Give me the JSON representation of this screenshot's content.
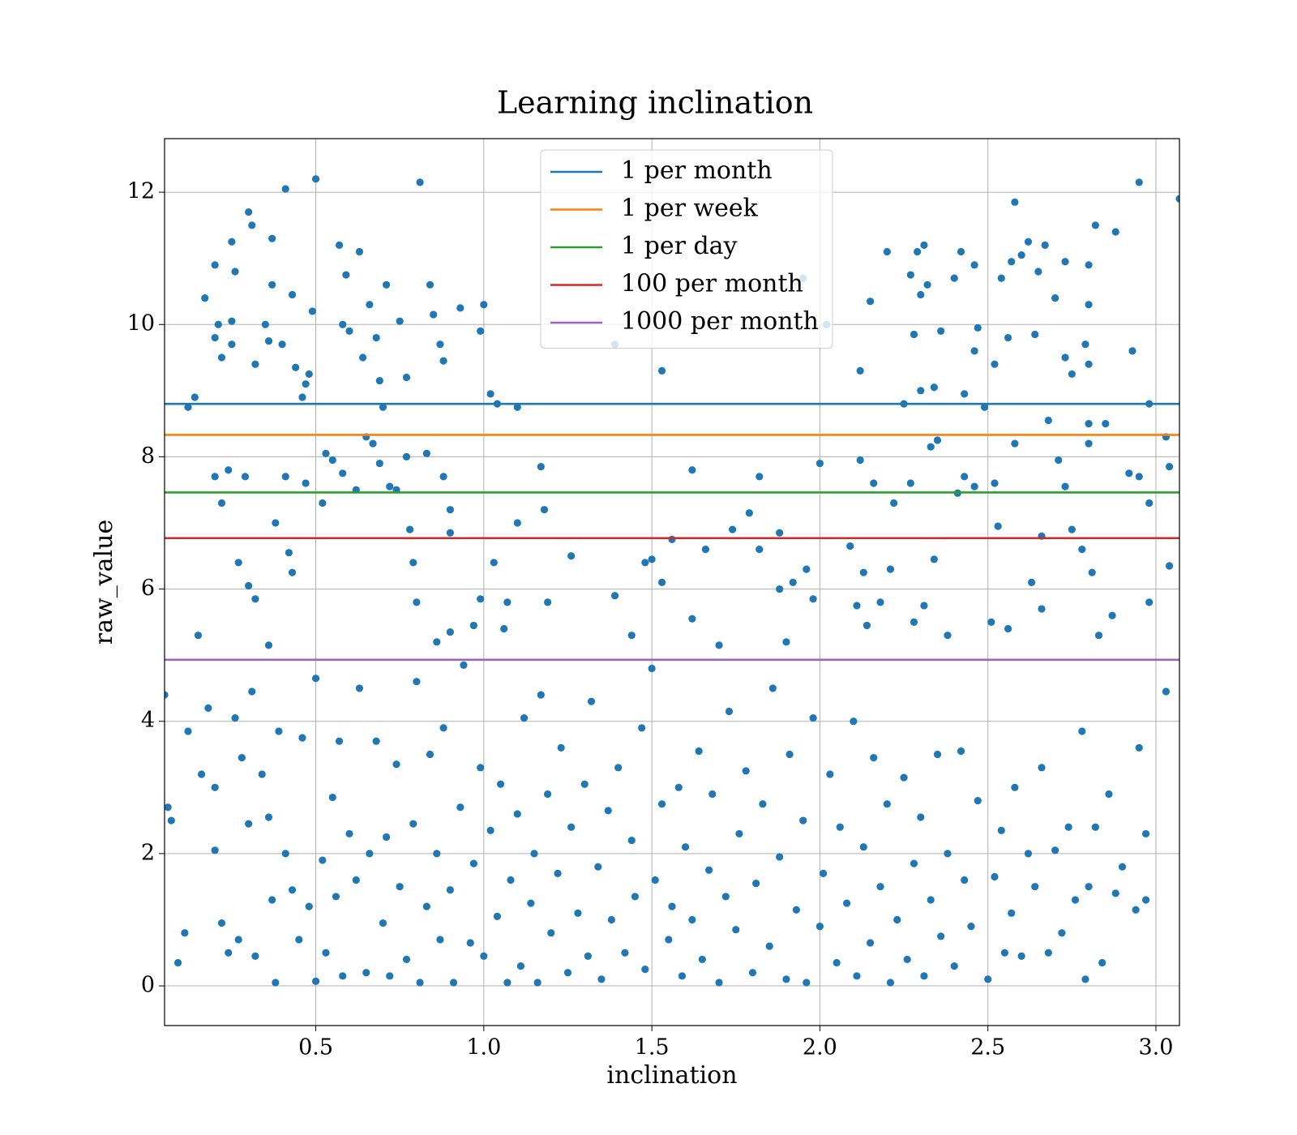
{
  "chart_data": {
    "type": "scatter",
    "title": "Learning inclination",
    "x_label": "inclination",
    "y_label": "raw_value",
    "color": "#1f77b4",
    "grid": true,
    "legend": "upper center",
    "xlim": [
      0.05,
      3.07
    ],
    "ylim": [
      -0.6,
      12.81
    ],
    "xticks": [
      0.5,
      {
        "value": 1,
        "label": "1.0"
      },
      1.5,
      {
        "value": 2,
        "label": "2.0"
      },
      2.5,
      {
        "value": 3,
        "label": "3.0"
      }
    ],
    "yticks": [
      0,
      2,
      4,
      6,
      8,
      10,
      12
    ],
    "hlines": [
      {
        "name": "1 per month",
        "color": "#1f77b4",
        "value": 8.8
      },
      {
        "name": "1 per week",
        "color": "#ff7f0e",
        "value": 8.33
      },
      {
        "name": "1 per day",
        "color": "#2ca02c",
        "value": 7.46
      },
      {
        "name": "100 per month",
        "color": "#d62728",
        "value": 6.77
      },
      {
        "name": "1000 per month",
        "color": "#9467bd",
        "value": 4.93
      }
    ],
    "x": [
      0.12,
      0.14,
      0.17,
      0.2,
      0.2,
      0.21,
      0.22,
      0.25,
      0.25,
      0.25,
      0.26,
      0.3,
      0.31,
      0.32,
      0.35,
      0.37,
      0.37,
      0.36,
      0.41,
      0.4,
      0.43,
      0.44,
      0.46,
      0.47,
      0.48,
      0.49,
      0.5,
      0.57,
      0.58,
      0.59,
      0.6,
      0.63,
      0.64,
      0.66,
      0.68,
      0.69,
      0.7,
      0.71,
      0.75,
      0.77,
      0.81,
      0.84,
      0.85,
      0.87,
      0.88,
      0.93,
      0.99,
      1.0,
      1.02,
      1.04,
      1.1,
      1.39,
      1.53,
      1.95,
      2.02,
      2.12,
      2.15,
      2.2,
      2.27,
      2.29,
      2.31,
      2.32,
      2.3,
      2.28,
      2.3,
      2.34,
      2.36,
      2.4,
      2.42,
      2.43,
      2.46,
      2.46,
      2.47,
      2.52,
      2.54,
      2.56,
      2.58,
      2.57,
      2.6,
      2.62,
      2.64,
      2.65,
      2.67,
      2.7,
      2.73,
      2.73,
      2.75,
      2.8,
      2.8,
      2.8,
      2.79,
      2.82,
      2.88,
      2.93,
      2.95,
      3.07,
      2.98,
      3.03,
      0.2,
      0.22,
      0.24,
      0.27,
      0.29,
      0.3,
      0.32,
      0.36,
      0.38,
      0.41,
      0.42,
      0.43,
      0.47,
      0.52,
      0.53,
      0.55,
      0.58,
      0.62,
      0.65,
      0.67,
      0.69,
      0.72,
      0.74,
      0.77,
      0.78,
      0.79,
      0.8,
      0.83,
      0.86,
      0.88,
      0.9,
      0.9,
      0.9,
      0.97,
      0.99,
      1.03,
      1.06,
      1.07,
      1.1,
      1.17,
      1.18,
      1.19,
      1.26,
      1.39,
      1.44,
      1.48,
      1.5,
      1.53,
      1.56,
      1.62,
      1.62,
      1.66,
      1.7,
      1.74,
      1.79,
      1.82,
      1.82,
      1.88,
      1.88,
      1.9,
      1.92,
      1.96,
      1.98,
      2.0,
      2.09,
      2.11,
      2.12,
      2.13,
      2.14,
      2.16,
      2.18,
      2.21,
      2.22,
      2.25,
      2.27,
      2.28,
      2.31,
      2.33,
      2.35,
      2.34,
      2.38,
      2.41,
      2.43,
      2.46,
      2.49,
      2.51,
      2.52,
      2.53,
      2.56,
      2.58,
      2.63,
      2.66,
      2.66,
      2.68,
      2.71,
      2.73,
      2.75,
      2.78,
      2.8,
      2.8,
      2.81,
      2.83,
      2.85,
      2.87,
      2.92,
      2.95,
      2.98,
      2.98,
      3.04,
      3.04,
      0.05,
      0.06,
      0.07,
      0.09,
      0.11,
      0.12,
      0.15,
      0.16,
      0.18,
      0.2,
      0.2,
      0.22,
      0.24,
      0.26,
      0.27,
      0.28,
      0.3,
      0.31,
      0.32,
      0.34,
      0.36,
      0.37,
      0.38,
      0.39,
      0.41,
      0.43,
      0.45,
      0.46,
      0.48,
      0.5,
      0.5,
      0.52,
      0.53,
      0.55,
      0.56,
      0.57,
      0.58,
      0.6,
      0.62,
      0.63,
      0.65,
      0.66,
      0.68,
      0.7,
      0.71,
      0.72,
      0.74,
      0.75,
      0.77,
      0.79,
      0.8,
      0.81,
      0.83,
      0.84,
      0.86,
      0.87,
      0.88,
      0.9,
      0.91,
      0.93,
      0.94,
      0.96,
      0.97,
      0.99,
      1.0,
      1.02,
      1.04,
      1.05,
      1.07,
      1.08,
      1.1,
      1.11,
      1.12,
      1.14,
      1.15,
      1.16,
      1.17,
      1.19,
      1.2,
      1.22,
      1.23,
      1.25,
      1.26,
      1.28,
      1.3,
      1.31,
      1.32,
      1.34,
      1.35,
      1.37,
      1.38,
      1.4,
      1.42,
      1.44,
      1.45,
      1.47,
      1.48,
      1.5,
      1.51,
      1.53,
      1.55,
      1.56,
      1.58,
      1.59,
      1.6,
      1.62,
      1.64,
      1.65,
      1.67,
      1.68,
      1.7,
      1.72,
      1.73,
      1.75,
      1.76,
      1.78,
      1.8,
      1.81,
      1.83,
      1.85,
      1.86,
      1.88,
      1.9,
      1.91,
      1.93,
      1.95,
      1.96,
      1.98,
      2.0,
      2.01,
      2.03,
      2.05,
      2.06,
      2.08,
      2.1,
      2.11,
      2.13,
      2.15,
      2.16,
      2.18,
      2.2,
      2.21,
      2.23,
      2.25,
      2.26,
      2.28,
      2.3,
      2.31,
      2.33,
      2.35,
      2.36,
      2.38,
      2.4,
      2.42,
      2.43,
      2.45,
      2.47,
      2.5,
      2.52,
      2.54,
      2.55,
      2.57,
      2.58,
      2.6,
      2.62,
      2.64,
      2.66,
      2.68,
      2.7,
      2.72,
      2.74,
      2.76,
      2.78,
      2.79,
      2.8,
      2.82,
      2.84,
      2.86,
      2.88,
      2.9,
      2.94,
      2.95,
      2.97,
      2.97,
      3.03
    ],
    "values": [
      8.75,
      8.9,
      10.4,
      9.8,
      10.9,
      10,
      9.5,
      11.25,
      9.7,
      10.05,
      10.8,
      11.7,
      11.5,
      9.4,
      10,
      11.3,
      10.6,
      9.75,
      12.05,
      9.7,
      10.45,
      9.35,
      8.9,
      9.1,
      9.25,
      10.2,
      12.2,
      11.2,
      10,
      10.75,
      9.9,
      11.1,
      9.5,
      10.3,
      9.8,
      9.15,
      8.75,
      10.6,
      10.05,
      9.2,
      12.15,
      10.6,
      10.15,
      9.7,
      9.45,
      10.25,
      9.9,
      10.3,
      8.95,
      8.8,
      8.75,
      9.7,
      9.3,
      10.7,
      10,
      9.3,
      10.35,
      11.1,
      10.75,
      11.1,
      11.2,
      10.6,
      10.45,
      9.85,
      9,
      9.05,
      9.9,
      10.7,
      11.1,
      8.95,
      10.9,
      9.6,
      9.95,
      9.4,
      10.7,
      9.8,
      11.85,
      10.95,
      11.05,
      11.25,
      9.85,
      10.8,
      11.2,
      10.4,
      10.95,
      9.5,
      9.25,
      10.9,
      10.3,
      9.4,
      9.7,
      11.5,
      11.4,
      9.6,
      12.15,
      11.9,
      8.8,
      8.3,
      7.7,
      7.3,
      7.8,
      6.4,
      7.7,
      6.05,
      5.85,
      5.15,
      7,
      7.7,
      6.55,
      6.25,
      7.6,
      7.3,
      8.05,
      7.95,
      7.75,
      7.5,
      8.3,
      8.2,
      7.9,
      7.55,
      7.5,
      8,
      6.9,
      6.4,
      5.8,
      8.05,
      5.2,
      7.7,
      6.85,
      7.2,
      5.35,
      5.45,
      5.85,
      6.4,
      5.4,
      5.8,
      7,
      7.85,
      7.2,
      5.8,
      6.5,
      5.9,
      5.3,
      6.4,
      6.45,
      6.1,
      6.75,
      7.8,
      5.55,
      6.6,
      5.15,
      6.9,
      7.15,
      7.7,
      6.6,
      6.85,
      6,
      5.2,
      6.1,
      6.3,
      5.85,
      7.9,
      6.65,
      5.75,
      7.95,
      6.25,
      5.45,
      7.6,
      5.8,
      6.3,
      7.3,
      8.8,
      7.6,
      5.5,
      5.75,
      8.15,
      8.25,
      6.45,
      5.3,
      7.45,
      7.7,
      7.55,
      8.75,
      5.5,
      7.6,
      6.95,
      5.4,
      8.2,
      6.1,
      5.7,
      6.8,
      8.55,
      7.95,
      7.55,
      6.9,
      6.6,
      8.2,
      8.5,
      6.25,
      5.3,
      8.5,
      5.6,
      7.75,
      7.7,
      7.3,
      5.8,
      6.35,
      7.85,
      4.4,
      2.7,
      2.5,
      0.35,
      0.8,
      3.85,
      5.3,
      3.2,
      4.2,
      2.05,
      3,
      0.95,
      0.5,
      4.05,
      0.7,
      3.45,
      2.45,
      4.45,
      0.45,
      3.2,
      2.55,
      1.3,
      0.05,
      3.85,
      2,
      1.45,
      0.7,
      3.75,
      1.2,
      0.07,
      4.65,
      1.9,
      0.5,
      2.85,
      1.35,
      3.7,
      0.15,
      2.3,
      1.6,
      4.5,
      0.2,
      2,
      3.7,
      0.95,
      2.25,
      0.15,
      3.35,
      1.5,
      0.4,
      2.45,
      4.6,
      0.05,
      1.2,
      3.5,
      2,
      0.7,
      3.9,
      1.45,
      0.05,
      2.7,
      4.85,
      0.65,
      1.85,
      3.3,
      0.45,
      2.35,
      1.05,
      3.05,
      0.05,
      1.6,
      2.6,
      0.3,
      4.05,
      1.25,
      2,
      0.05,
      4.4,
      2.9,
      0.8,
      1.7,
      3.6,
      0.2,
      2.4,
      1.1,
      3.05,
      0.45,
      4.3,
      1.8,
      0.1,
      2.65,
      1,
      3.3,
      0.5,
      2.2,
      1.35,
      3.9,
      0.25,
      4.8,
      1.6,
      2.75,
      0.7,
      1.2,
      3,
      0.15,
      2.1,
      1,
      3.55,
      0.4,
      1.75,
      2.9,
      0.05,
      1.35,
      4.15,
      0.85,
      2.3,
      3.25,
      0.2,
      1.55,
      2.75,
      0.6,
      4.5,
      1.95,
      0.1,
      3.5,
      1.15,
      2.5,
      0.05,
      4.05,
      0.9,
      1.7,
      3.2,
      0.35,
      2.4,
      1.25,
      4,
      0.15,
      2.1,
      0.65,
      3.45,
      1.5,
      2.75,
      0.05,
      1,
      3.15,
      0.4,
      1.85,
      2.55,
      0.15,
      1.3,
      3.5,
      0.75,
      2,
      0.3,
      3.55,
      1.6,
      0.9,
      2.8,
      0.1,
      1.65,
      2.35,
      0.5,
      1.1,
      3,
      0.45,
      2,
      1.5,
      3.3,
      0.5,
      2.05,
      0.8,
      2.4,
      1.3,
      3.85,
      0.1,
      1.5,
      2.4,
      0.35,
      2.9,
      1.4,
      1.8,
      1.15,
      3.6,
      2.3,
      1.3,
      4.45
    ]
  }
}
